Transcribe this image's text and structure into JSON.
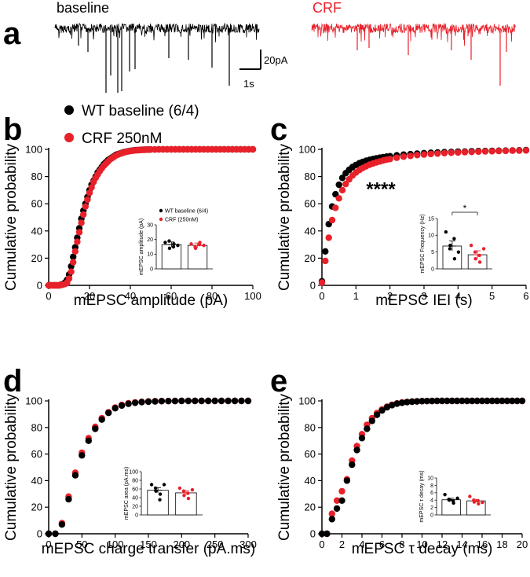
{
  "panel_a": {
    "letter": "a",
    "baseline_label": "baseline",
    "crf_label": "CRF",
    "scale_y": "20pA",
    "scale_x": "1s"
  },
  "legend": {
    "wt": "WT baseline (6/4)",
    "crf": "CRF 250nM"
  },
  "colors": {
    "wt": "#000000",
    "crf": "#e8202a"
  },
  "chart_data": [
    {
      "id": "b",
      "letter": "b",
      "type": "scatter",
      "xlabel": "mEPSC amplitude (pA)",
      "ylabel": "Cumulative probability",
      "xlim": [
        0,
        100
      ],
      "xticks": [
        0,
        20,
        40,
        60,
        80,
        100
      ],
      "ylim": [
        0,
        100
      ],
      "yticks": [
        0,
        20,
        40,
        60,
        80,
        100
      ],
      "series": [
        {
          "name": "WT baseline (6/4)",
          "x": [
            0,
            1,
            2,
            3,
            4,
            5,
            6,
            7,
            8,
            9,
            10,
            11,
            12,
            13,
            14,
            15,
            16,
            17,
            18,
            19,
            20,
            21,
            22,
            23,
            24,
            25,
            26,
            27,
            28,
            29,
            30,
            31,
            32,
            33,
            34,
            35,
            36,
            37,
            38,
            39,
            40,
            41,
            42,
            43,
            44,
            45,
            46,
            47,
            48,
            49,
            50,
            52,
            54,
            56,
            58,
            60,
            62,
            64,
            66,
            68,
            70,
            72,
            74,
            76,
            78,
            80,
            82,
            84,
            86,
            88,
            90,
            92,
            94,
            96,
            98,
            100
          ],
          "y": [
            0,
            0,
            0,
            0,
            0,
            0,
            0.5,
            1,
            2,
            4,
            8,
            14,
            21,
            28,
            35,
            42,
            49,
            55,
            60,
            65,
            70,
            74,
            77,
            80,
            83,
            85,
            87,
            89,
            90.5,
            92,
            93,
            94,
            95,
            96,
            96.5,
            97,
            97.5,
            98,
            98.3,
            98.6,
            98.9,
            99.1,
            99.3,
            99.4,
            99.5,
            99.6,
            99.7,
            99.7,
            99.8,
            99.8,
            99.9,
            99.9,
            100,
            100,
            100,
            100,
            100,
            100,
            100,
            100,
            100,
            100,
            100,
            100,
            100,
            100,
            100,
            100,
            100,
            100,
            100,
            100,
            100,
            100,
            100,
            100
          ]
        },
        {
          "name": "CRF (250nM)",
          "x": [
            0,
            1,
            2,
            3,
            4,
            5,
            6,
            7,
            8,
            9,
            10,
            11,
            12,
            13,
            14,
            15,
            16,
            17,
            18,
            19,
            20,
            21,
            22,
            23,
            24,
            25,
            26,
            27,
            28,
            29,
            30,
            31,
            32,
            33,
            34,
            35,
            36,
            37,
            38,
            39,
            40,
            41,
            42,
            43,
            44,
            45,
            46,
            47,
            48,
            49,
            50,
            52,
            54,
            56,
            58,
            60,
            62,
            64,
            66,
            68,
            70,
            72,
            74,
            76,
            78,
            80,
            82,
            84,
            86,
            88,
            90,
            92,
            94,
            96,
            98,
            100
          ],
          "y": [
            0,
            0,
            0,
            0,
            0,
            0,
            0.3,
            0.6,
            1,
            2,
            5,
            10,
            17,
            25,
            32,
            39,
            46,
            52,
            58,
            63,
            68,
            72,
            76,
            79,
            81.5,
            84,
            86,
            88,
            89.5,
            91,
            92.5,
            93.5,
            94.5,
            95.5,
            96.2,
            96.8,
            97.3,
            97.8,
            98.2,
            98.5,
            98.8,
            99,
            99.2,
            99.3,
            99.5,
            99.6,
            99.6,
            99.7,
            99.8,
            99.8,
            99.9,
            99.9,
            100,
            100,
            100,
            100,
            100,
            100,
            100,
            100,
            100,
            100,
            100,
            100,
            100,
            100,
            100,
            100,
            100,
            100,
            100,
            100,
            100,
            100,
            100,
            100
          ]
        }
      ],
      "inset": {
        "ylabel": "mEPSC amplitude (pA)",
        "ylim": [
          0,
          30
        ],
        "yticks": [
          0,
          10,
          20,
          30
        ],
        "legend": [
          "WT baseline (6/4)",
          "CRF (250nM)"
        ],
        "bars": [
          16.5,
          16
        ],
        "errors": [
          1.8,
          1.6
        ],
        "points": [
          [
            18,
            14,
            17,
            19,
            15,
            16
          ],
          [
            17,
            14,
            18,
            15,
            16.5,
            16
          ]
        ]
      }
    },
    {
      "id": "c",
      "letter": "c",
      "type": "scatter",
      "xlabel": "mEPSC IEI (s)",
      "ylabel": "Cumulative probability",
      "xlim": [
        0,
        6
      ],
      "xticks": [
        0,
        1,
        2,
        3,
        4,
        5,
        6
      ],
      "ylim": [
        0,
        100
      ],
      "yticks": [
        0,
        20,
        40,
        60,
        80,
        100
      ],
      "annotation": "****",
      "series": [
        {
          "name": "WT baseline (6/4)",
          "x": [
            0,
            0.1,
            0.2,
            0.3,
            0.4,
            0.5,
            0.6,
            0.7,
            0.8,
            0.9,
            1,
            1.1,
            1.2,
            1.3,
            1.4,
            1.5,
            1.6,
            1.7,
            1.8,
            1.9,
            2,
            2.2,
            2.4,
            2.6,
            2.8,
            3,
            3.2,
            3.4,
            3.6,
            3.8,
            4,
            4.2,
            4.4,
            4.6,
            4.8,
            5,
            5.2,
            5.4,
            5.6,
            5.8,
            6
          ],
          "y": [
            3,
            25,
            45,
            58,
            67,
            74,
            79,
            82.5,
            85,
            87,
            88.5,
            89.8,
            90.8,
            91.6,
            92.3,
            92.9,
            93.4,
            93.9,
            94.3,
            94.7,
            95,
            95.6,
            96.1,
            96.5,
            96.9,
            97.2,
            97.5,
            97.7,
            97.9,
            98.1,
            98.3,
            98.4,
            98.6,
            98.7,
            98.8,
            98.9,
            99,
            99.1,
            99.2,
            99.3,
            99.4
          ]
        },
        {
          "name": "CRF (250nM)",
          "x": [
            0,
            0.1,
            0.2,
            0.3,
            0.4,
            0.5,
            0.6,
            0.7,
            0.8,
            0.9,
            1,
            1.1,
            1.2,
            1.3,
            1.4,
            1.5,
            1.6,
            1.7,
            1.8,
            1.9,
            2,
            2.2,
            2.4,
            2.6,
            2.8,
            3,
            3.2,
            3.4,
            3.6,
            3.8,
            4,
            4.2,
            4.4,
            4.6,
            4.8,
            5,
            5.2,
            5.4,
            5.6,
            5.8,
            6
          ],
          "y": [
            2,
            18,
            35,
            48,
            57,
            64,
            70,
            74.5,
            78,
            80.8,
            83,
            84.8,
            86.3,
            87.6,
            88.7,
            89.6,
            90.4,
            91.1,
            91.8,
            92.4,
            92.9,
            93.8,
            94.6,
            95.2,
            95.8,
            96.2,
            96.6,
            96.9,
            97.2,
            97.5,
            97.7,
            97.9,
            98.1,
            98.3,
            98.5,
            98.6,
            98.8,
            98.9,
            99,
            99.1,
            99.2
          ]
        }
      ],
      "inset": {
        "ylabel": "mEPSC Frequency (Hz)",
        "ylim": [
          0,
          15
        ],
        "yticks": [
          0,
          5,
          10,
          15
        ],
        "significance": "*",
        "bars": [
          6.8,
          4.2
        ],
        "errors": [
          1.5,
          1.2
        ],
        "points": [
          [
            11,
            7,
            3,
            6,
            9,
            5
          ],
          [
            7,
            3,
            2,
            5,
            4,
            6
          ]
        ]
      }
    },
    {
      "id": "d",
      "letter": "d",
      "type": "scatter",
      "xlabel": "mEPSC charge transfer (pA.ms)",
      "ylabel": "Cumulative probability",
      "xlim": [
        0,
        300
      ],
      "xticks": [
        0,
        50,
        100,
        150,
        200,
        250,
        300
      ],
      "ylim": [
        0,
        100
      ],
      "yticks": [
        0,
        20,
        40,
        60,
        80,
        100
      ],
      "series": [
        {
          "name": "WT baseline (6/4)",
          "x": [
            0,
            10,
            20,
            30,
            40,
            50,
            60,
            70,
            80,
            90,
            100,
            110,
            120,
            130,
            140,
            150,
            160,
            170,
            180,
            190,
            200,
            210,
            220,
            230,
            240,
            250,
            260,
            270,
            280,
            290,
            300
          ],
          "y": [
            0,
            0,
            7,
            26,
            44,
            59,
            70,
            79,
            86,
            91,
            94.5,
            96.5,
            97.8,
            98.6,
            99.1,
            99.4,
            99.6,
            99.8,
            99.9,
            99.9,
            100,
            100,
            100,
            100,
            100,
            100,
            100,
            100,
            100,
            100,
            100
          ]
        },
        {
          "name": "CRF (250nM)",
          "x": [
            0,
            10,
            20,
            30,
            40,
            50,
            60,
            70,
            80,
            90,
            100,
            110,
            120,
            130,
            140,
            150,
            160,
            170,
            180,
            190,
            200,
            210,
            220,
            230,
            240,
            250,
            260,
            270,
            280,
            290,
            300
          ],
          "y": [
            0,
            0,
            8,
            28,
            46,
            61,
            72,
            80.5,
            87,
            91.5,
            95,
            97,
            98.2,
            98.9,
            99.3,
            99.6,
            99.8,
            99.9,
            99.9,
            100,
            100,
            100,
            100,
            100,
            100,
            100,
            100,
            100,
            100,
            100,
            100
          ]
        }
      ],
      "inset": {
        "ylabel": "mEPSC area (pA.ms)",
        "ylim": [
          0,
          100
        ],
        "yticks": [
          0,
          20,
          40,
          60,
          80,
          100
        ],
        "bars": [
          57,
          51
        ],
        "errors": [
          6,
          5
        ],
        "points": [
          [
            70,
            55,
            48,
            62,
            35,
            70
          ],
          [
            62,
            45,
            38,
            55,
            50,
            58
          ]
        ]
      }
    },
    {
      "id": "e",
      "letter": "e",
      "type": "scatter",
      "xlabel": "mEPSC τ decay (ms)",
      "ylabel": "Cumulative probability",
      "xlim": [
        0,
        20
      ],
      "xticks": [
        0,
        2,
        4,
        6,
        8,
        10,
        12,
        14,
        16,
        18,
        20
      ],
      "ylim": [
        0,
        100
      ],
      "yticks": [
        0,
        20,
        40,
        60,
        80,
        100
      ],
      "series": [
        {
          "name": "WT baseline (6/4)",
          "x": [
            0,
            0.5,
            1,
            1.5,
            2,
            2.5,
            3,
            3.5,
            4,
            4.5,
            5,
            5.5,
            6,
            6.5,
            7,
            7.5,
            8,
            8.5,
            9,
            9.5,
            10,
            10.5,
            11,
            11.5,
            12,
            12.5,
            13,
            13.5,
            14,
            14.5,
            15,
            15.5,
            16,
            16.5,
            17,
            17.5,
            18,
            18.5,
            19,
            19.5,
            20
          ],
          "y": [
            0,
            0,
            11,
            19,
            25,
            40,
            52,
            63,
            72,
            79,
            85,
            89.5,
            92.8,
            95.2,
            96.8,
            97.9,
            98.6,
            99.1,
            99.4,
            99.6,
            99.8,
            99.9,
            99.9,
            100,
            100,
            100,
            100,
            100,
            100,
            100,
            100,
            100,
            100,
            100,
            100,
            100,
            100,
            100,
            100,
            100,
            100
          ]
        },
        {
          "name": "CRF (250nM)",
          "x": [
            0,
            0.5,
            1,
            1.5,
            2,
            2.5,
            3,
            3.5,
            4,
            4.5,
            5,
            5.5,
            6,
            6.5,
            7,
            7.5,
            8,
            8.5,
            9,
            9.5,
            10,
            10.5,
            11,
            11.5,
            12,
            12.5,
            13,
            13.5,
            14,
            14.5,
            15,
            15.5,
            16,
            16.5,
            17,
            17.5,
            18,
            18.5,
            19,
            19.5,
            20
          ],
          "y": [
            0,
            0,
            15,
            25,
            32,
            41,
            55,
            66,
            75,
            82,
            87,
            90.8,
            93.6,
            95.7,
            97.1,
            98.1,
            98.8,
            99.2,
            99.5,
            99.7,
            99.8,
            99.9,
            100,
            100,
            100,
            100,
            100,
            100,
            100,
            100,
            100,
            100,
            100,
            100,
            100,
            100,
            100,
            100,
            100,
            100,
            100
          ]
        }
      ],
      "inset": {
        "ylabel": "mEPSC τ decay (ms)",
        "ylim": [
          0,
          10
        ],
        "yticks": [
          0,
          2,
          4,
          6,
          8,
          10
        ],
        "bars": [
          4.1,
          3.8
        ],
        "errors": [
          0.4,
          0.4
        ],
        "points": [
          [
            5.5,
            4,
            3.2,
            4.2,
            3.8,
            4.5
          ],
          [
            5,
            3.5,
            3,
            4,
            3.8,
            3.4
          ]
        ]
      }
    }
  ]
}
